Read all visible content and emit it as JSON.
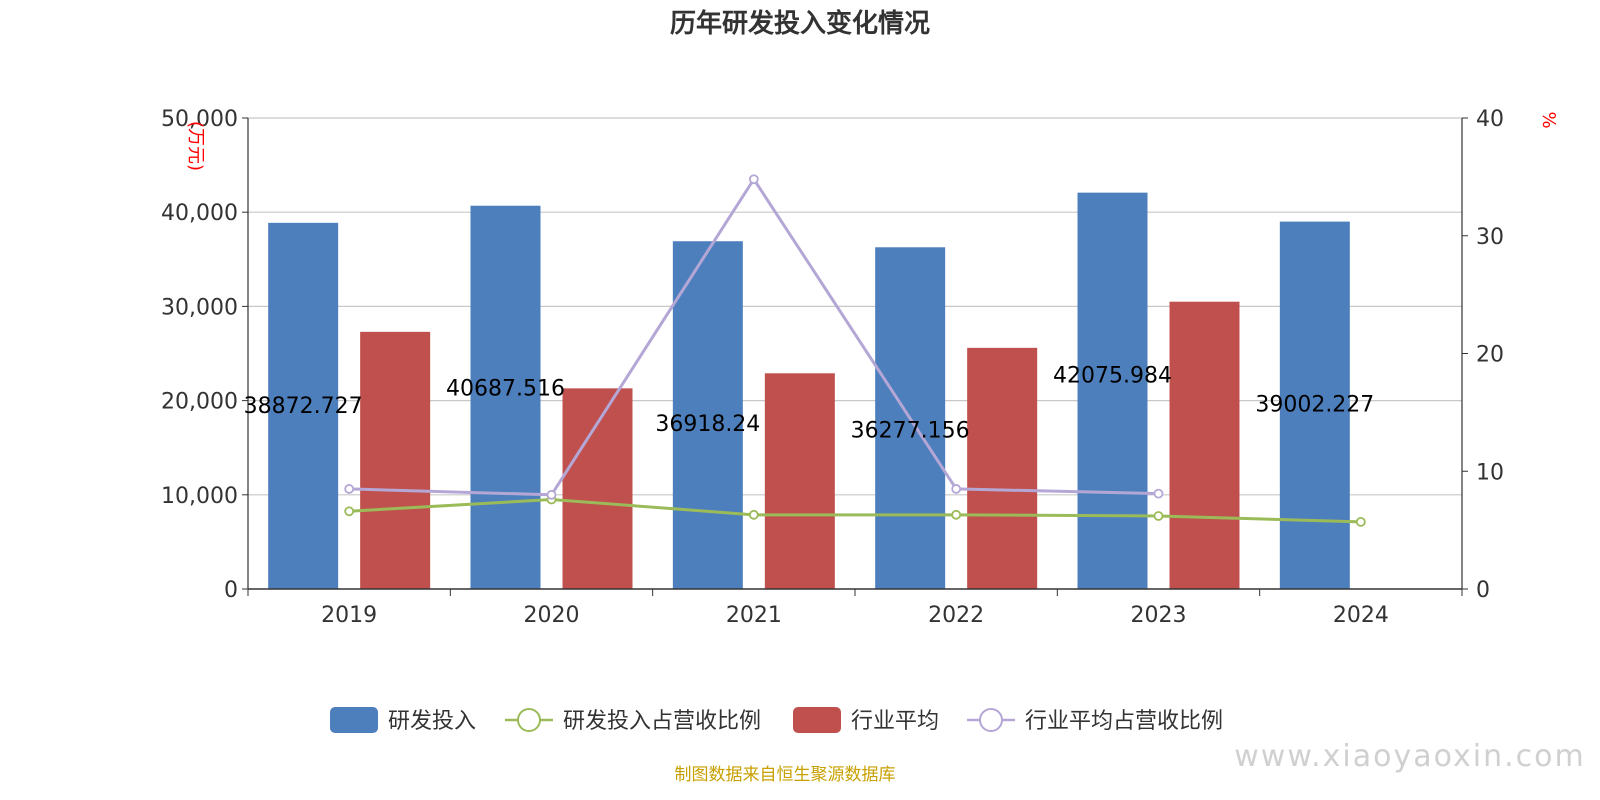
{
  "chart_data": {
    "type": "bar",
    "title": "历年研发投入变化情况",
    "categories": [
      "2019",
      "2020",
      "2021",
      "2022",
      "2023",
      "2024"
    ],
    "y_left": {
      "unit": "万元",
      "ylim": [
        0,
        50000
      ],
      "ticks": [
        "0",
        "10,000",
        "20,000",
        "30,000",
        "40,000",
        "50,000"
      ]
    },
    "y_right": {
      "unit": "%",
      "ylim": [
        0,
        40
      ],
      "ticks": [
        "0",
        "10",
        "20",
        "30",
        "40"
      ]
    },
    "grid": true,
    "legend_position": "bottom-center",
    "series": [
      {
        "name": "研发投入",
        "kind": "bar",
        "axis": "left",
        "color": "#4e7fbd",
        "values": [
          38872.727,
          40687.516,
          36918.24,
          36277.156,
          42075.984,
          39002.227
        ],
        "labels": [
          "38872.727",
          "40687.516",
          "36918.24",
          "36277.156",
          "42075.984",
          "39002.227"
        ]
      },
      {
        "name": "研发投入占营收比例",
        "kind": "line",
        "axis": "right",
        "color": "#9bbb59",
        "values": [
          6.6,
          7.6,
          6.3,
          6.3,
          6.2,
          5.7
        ]
      },
      {
        "name": "行业平均",
        "kind": "bar",
        "axis": "left",
        "color": "#c0504d",
        "values": [
          27300,
          21300,
          22900,
          25600,
          30500,
          null
        ]
      },
      {
        "name": "行业平均占营收比例",
        "kind": "line",
        "axis": "right",
        "color": "#b4a7d6",
        "values": [
          8.5,
          8.0,
          34.8,
          8.5,
          8.1,
          null
        ]
      }
    ]
  },
  "footer": {
    "source": "制图数据来自恒生聚源数据库",
    "watermark": "www.xiaoyaoxin.com"
  }
}
